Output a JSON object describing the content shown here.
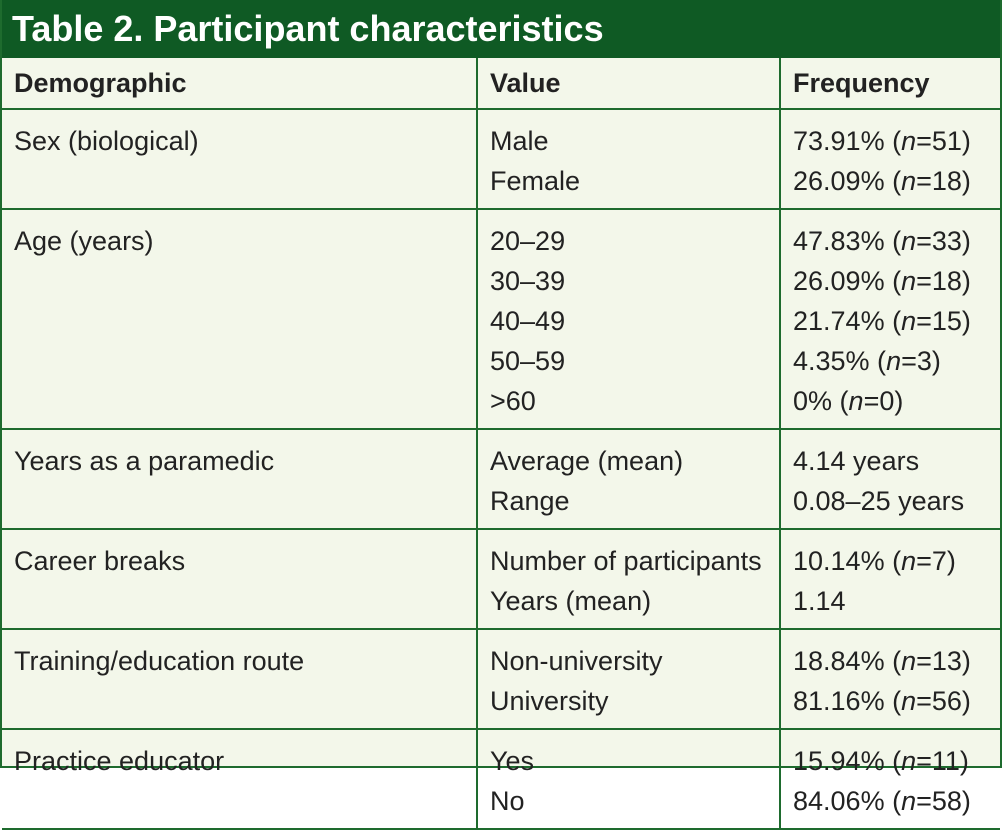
{
  "title": "Table 2. Participant characteristics",
  "columns": [
    "Demographic",
    "Value",
    "Frequency"
  ],
  "rows": [
    {
      "demographic": "Sex (biological)",
      "values": [
        "Male",
        "Female"
      ],
      "frequencies": [
        {
          "pct": "73.91% (",
          "n": "n",
          "rest": "=51)"
        },
        {
          "pct": "26.09% (",
          "n": "n",
          "rest": "=18)"
        }
      ]
    },
    {
      "demographic": "Age (years)",
      "values": [
        "20–29",
        "30–39",
        "40–49",
        "50–59",
        ">60"
      ],
      "frequencies": [
        {
          "pct": "47.83% (",
          "n": "n",
          "rest": "=33)"
        },
        {
          "pct": "26.09% (",
          "n": "n",
          "rest": "=18)"
        },
        {
          "pct": "21.74% (",
          "n": "n",
          "rest": "=15)"
        },
        {
          "pct": "4.35% (",
          "n": "n",
          "rest": "=3)"
        },
        {
          "pct": "0% (",
          "n": "n",
          "rest": "=0)"
        }
      ]
    },
    {
      "demographic": "Years as a paramedic",
      "values": [
        "Average (mean)",
        "Range"
      ],
      "frequencies": [
        {
          "pct": "4.14 years",
          "n": "",
          "rest": ""
        },
        {
          "pct": "0.08–25 years",
          "n": "",
          "rest": ""
        }
      ]
    },
    {
      "demographic": "Career breaks",
      "values": [
        "Number of participants",
        "Years (mean)"
      ],
      "frequencies": [
        {
          "pct": "10.14% (",
          "n": "n",
          "rest": "=7)"
        },
        {
          "pct": "1.14",
          "n": "",
          "rest": ""
        }
      ]
    },
    {
      "demographic": "Training/education route",
      "values": [
        "Non-university",
        "University"
      ],
      "frequencies": [
        {
          "pct": "18.84% (",
          "n": "n",
          "rest": "=13)"
        },
        {
          "pct": "81.16% (",
          "n": "n",
          "rest": "=56)"
        }
      ]
    },
    {
      "demographic": "Practice educator",
      "values": [
        "Yes",
        "No"
      ],
      "frequencies": [
        {
          "pct": "15.94% (",
          "n": "n",
          "rest": "=11)"
        },
        {
          "pct": "84.06% (",
          "n": "n",
          "rest": "=58)"
        }
      ]
    }
  ],
  "colors": {
    "title_bg": "#0f5a24",
    "border": "#1e6b2e",
    "table_bg": "#f3f7ea"
  }
}
